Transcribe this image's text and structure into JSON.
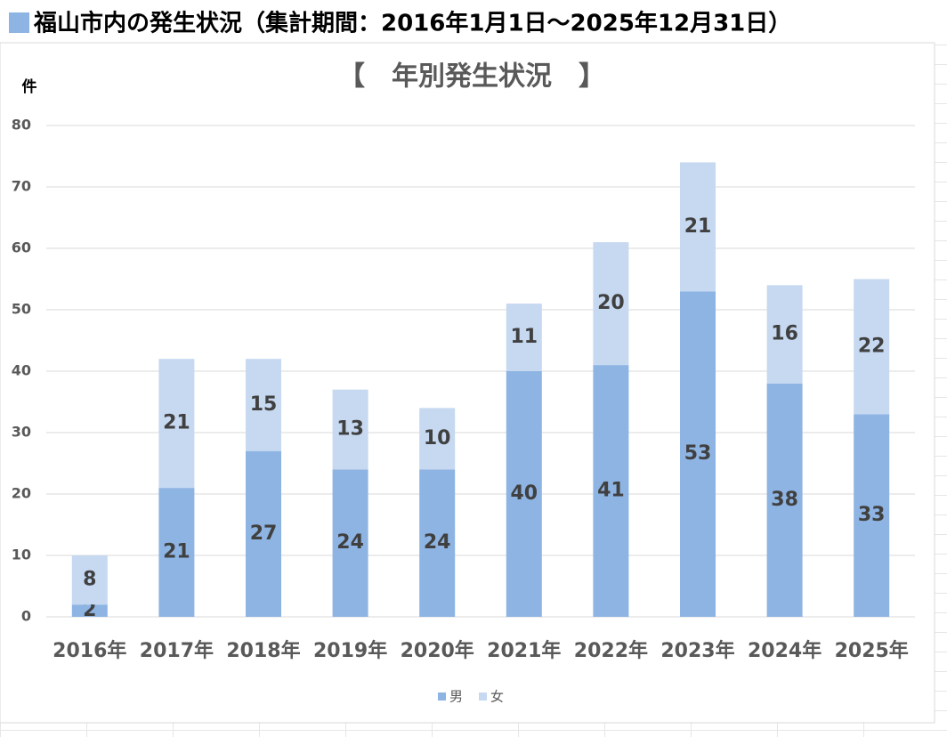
{
  "header": "福山市内の発生状況（集計期間：2016年1月1日～2025年12月31日）",
  "chart_data": {
    "type": "stacked-bar",
    "title": "【　年別発生状況　】",
    "y_label": "件",
    "categories": [
      "2016年",
      "2017年",
      "2018年",
      "2019年",
      "2020年",
      "2021年",
      "2022年",
      "2023年",
      "2024年",
      "2025年"
    ],
    "series": [
      {
        "name": "男",
        "color": "#8eb4e3",
        "values": [
          2,
          21,
          27,
          24,
          24,
          40,
          41,
          53,
          38,
          33
        ]
      },
      {
        "name": "女",
        "color": "#c6d9f1",
        "values": [
          8,
          21,
          15,
          13,
          10,
          11,
          20,
          21,
          16,
          22
        ]
      }
    ],
    "ylim": [
      0,
      80
    ],
    "yticks": [
      0,
      10,
      20,
      30,
      40,
      50,
      60,
      70,
      80
    ],
    "grid": true,
    "legend": "bottom"
  }
}
